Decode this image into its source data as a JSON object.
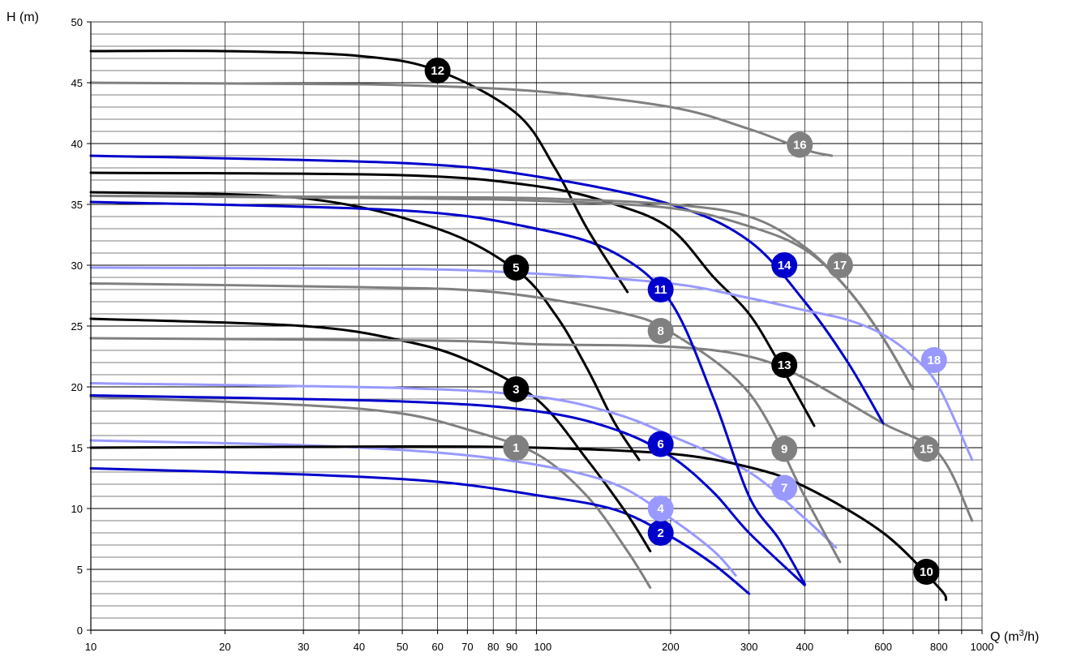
{
  "chart_data": {
    "type": "line",
    "ylabel": "H (m)",
    "xlabel": "Q (m",
    "xlabel_sup": "3",
    "xlabel_tail": "/h)",
    "x_scale": "log",
    "xlim": [
      10,
      1000
    ],
    "ylim": [
      0,
      50
    ],
    "grid": true,
    "x_tick_labels": [
      "10",
      "20",
      "30",
      "40",
      "50",
      "60",
      "70",
      "80",
      "90",
      "100",
      "200",
      "300",
      "400",
      "600",
      "800",
      "1000"
    ],
    "y_tick_labels": [
      "0",
      "5",
      "10",
      "15",
      "20",
      "25",
      "30",
      "35",
      "40",
      "45",
      "50"
    ],
    "colors": {
      "black": "#000000",
      "gray": "#808080",
      "blue": "#0000cc",
      "light_blue": "#9999ff"
    },
    "series": [
      {
        "name": "1",
        "color": "gray",
        "points": [
          [
            10,
            19.2
          ],
          [
            30,
            18.5
          ],
          [
            50,
            17.8
          ],
          [
            70,
            16.5
          ],
          [
            100,
            14.5
          ],
          [
            130,
            11
          ],
          [
            160,
            6.5
          ],
          [
            180,
            3.5
          ]
        ],
        "marker": [
          90,
          15
        ]
      },
      {
        "name": "2",
        "color": "blue",
        "points": [
          [
            10,
            13.3
          ],
          [
            30,
            12.8
          ],
          [
            60,
            12.2
          ],
          [
            100,
            11.1
          ],
          [
            150,
            9.9
          ],
          [
            200,
            7.7
          ],
          [
            250,
            5.4
          ],
          [
            300,
            3
          ]
        ],
        "marker": [
          190,
          8
        ]
      },
      {
        "name": "3",
        "color": "black",
        "points": [
          [
            10,
            25.6
          ],
          [
            30,
            25
          ],
          [
            50,
            23.8
          ],
          [
            70,
            22.2
          ],
          [
            100,
            19
          ],
          [
            130,
            14
          ],
          [
            160,
            9.5
          ],
          [
            180,
            6.5
          ]
        ],
        "marker": [
          90,
          19.8
        ]
      },
      {
        "name": "4",
        "color": "light_blue",
        "points": [
          [
            10,
            15.6
          ],
          [
            30,
            15.2
          ],
          [
            60,
            14.6
          ],
          [
            100,
            13.6
          ],
          [
            150,
            12
          ],
          [
            200,
            9.2
          ],
          [
            250,
            6.5
          ],
          [
            280,
            4.5
          ]
        ],
        "marker": [
          190,
          10
        ]
      },
      {
        "name": "5",
        "color": "black",
        "points": [
          [
            10,
            36
          ],
          [
            30,
            35.5
          ],
          [
            60,
            33
          ],
          [
            90,
            29.6
          ],
          [
            110,
            26
          ],
          [
            130,
            21.5
          ],
          [
            150,
            17
          ],
          [
            170,
            14
          ]
        ],
        "marker": [
          90,
          29.8
        ]
      },
      {
        "name": "6",
        "color": "blue",
        "points": [
          [
            10,
            19.3
          ],
          [
            50,
            18.8
          ],
          [
            100,
            18
          ],
          [
            150,
            16.5
          ],
          [
            200,
            14.3
          ],
          [
            250,
            11.3
          ],
          [
            300,
            8
          ],
          [
            400,
            3.7
          ]
        ],
        "marker": [
          190,
          15.3
        ]
      },
      {
        "name": "7",
        "color": "light_blue",
        "points": [
          [
            10,
            20.3
          ],
          [
            50,
            19.9
          ],
          [
            100,
            19.2
          ],
          [
            150,
            17.8
          ],
          [
            200,
            16
          ],
          [
            300,
            13
          ],
          [
            400,
            9.2
          ],
          [
            470,
            6.8
          ]
        ],
        "marker": [
          360,
          11.7
        ]
      },
      {
        "name": "8",
        "color": "gray",
        "points": [
          [
            10,
            28.5
          ],
          [
            40,
            28.2
          ],
          [
            80,
            27.8
          ],
          [
            150,
            26.2
          ],
          [
            200,
            24.5
          ],
          [
            300,
            19.5
          ],
          [
            400,
            11
          ],
          [
            480,
            5.6
          ]
        ],
        "marker": [
          190,
          24.6
        ]
      },
      {
        "name": "9",
        "color": "gray",
        "points": [
          [
            10,
            24
          ],
          [
            60,
            23.8
          ],
          [
            100,
            23.5
          ],
          [
            200,
            23.3
          ],
          [
            300,
            22.5
          ],
          [
            400,
            20.7
          ],
          [
            600,
            17
          ],
          [
            800,
            14.5
          ],
          [
            950,
            9
          ]
        ],
        "marker": [
          360,
          14.9
        ]
      },
      {
        "name": "10",
        "color": "black",
        "points": [
          [
            10,
            15
          ],
          [
            50,
            15.1
          ],
          [
            100,
            15
          ],
          [
            200,
            14.5
          ],
          [
            300,
            13.4
          ],
          [
            400,
            11.8
          ],
          [
            600,
            8
          ],
          [
            800,
            3.5
          ],
          [
            830,
            2.5
          ]
        ],
        "marker": [
          750,
          4.8
        ]
      },
      {
        "name": "11",
        "color": "blue",
        "points": [
          [
            10,
            35.2
          ],
          [
            50,
            34.5
          ],
          [
            100,
            33
          ],
          [
            150,
            31
          ],
          [
            200,
            27
          ],
          [
            250,
            19
          ],
          [
            300,
            11
          ],
          [
            350,
            7.5
          ],
          [
            400,
            3.8
          ]
        ],
        "marker": [
          190,
          28
        ]
      },
      {
        "name": "12",
        "color": "black",
        "points": [
          [
            10,
            47.6
          ],
          [
            20,
            47.6
          ],
          [
            40,
            47.2
          ],
          [
            60,
            46
          ],
          [
            90,
            42.5
          ],
          [
            110,
            38
          ],
          [
            130,
            33
          ],
          [
            160,
            27.8
          ]
        ],
        "marker": [
          60,
          46
        ]
      },
      {
        "name": "13",
        "color": "black",
        "points": [
          [
            10,
            37.6
          ],
          [
            50,
            37.4
          ],
          [
            100,
            36.5
          ],
          [
            150,
            35
          ],
          [
            200,
            33
          ],
          [
            250,
            29
          ],
          [
            300,
            26
          ],
          [
            350,
            22
          ],
          [
            420,
            16.8
          ]
        ],
        "marker": [
          360,
          21.8
        ]
      },
      {
        "name": "14",
        "color": "blue",
        "points": [
          [
            10,
            39
          ],
          [
            50,
            38.4
          ],
          [
            100,
            37.3
          ],
          [
            200,
            35
          ],
          [
            300,
            32
          ],
          [
            400,
            27
          ],
          [
            500,
            22
          ],
          [
            600,
            17
          ]
        ],
        "marker": [
          360,
          30
        ]
      },
      {
        "name": "15",
        "color": "gray",
        "points": [
          [
            10,
            35.7
          ],
          [
            50,
            35.6
          ],
          [
            100,
            35.5
          ],
          [
            200,
            35
          ],
          [
            300,
            34
          ],
          [
            400,
            31.5
          ],
          [
            500,
            28
          ],
          [
            600,
            24
          ],
          [
            700,
            19.8
          ]
        ],
        "marker": [
          750,
          14.9
        ]
      },
      {
        "name": "16",
        "color": "gray",
        "points": [
          [
            10,
            45
          ],
          [
            30,
            44.9
          ],
          [
            50,
            44.8
          ],
          [
            100,
            44.3
          ],
          [
            200,
            43
          ],
          [
            300,
            41.2
          ],
          [
            400,
            39.5
          ],
          [
            460,
            39
          ]
        ],
        "marker": [
          390,
          39.9
        ]
      },
      {
        "name": "17",
        "color": "gray",
        "points": [
          [
            10,
            35.7
          ],
          [
            50,
            35.5
          ],
          [
            100,
            35.3
          ],
          [
            200,
            34.7
          ],
          [
            300,
            33.2
          ],
          [
            400,
            31.3
          ],
          [
            500,
            28
          ],
          [
            600,
            24
          ],
          [
            700,
            19.8
          ]
        ],
        "marker": [
          480,
          30
        ]
      },
      {
        "name": "18",
        "color": "light_blue",
        "points": [
          [
            10,
            29.8
          ],
          [
            50,
            29.7
          ],
          [
            100,
            29.3
          ],
          [
            200,
            28.5
          ],
          [
            300,
            27.3
          ],
          [
            400,
            26.3
          ],
          [
            500,
            25.5
          ],
          [
            600,
            24.3
          ],
          [
            700,
            22.5
          ],
          [
            800,
            20
          ],
          [
            950,
            14
          ]
        ],
        "marker": [
          780,
          22.2
        ]
      }
    ]
  }
}
